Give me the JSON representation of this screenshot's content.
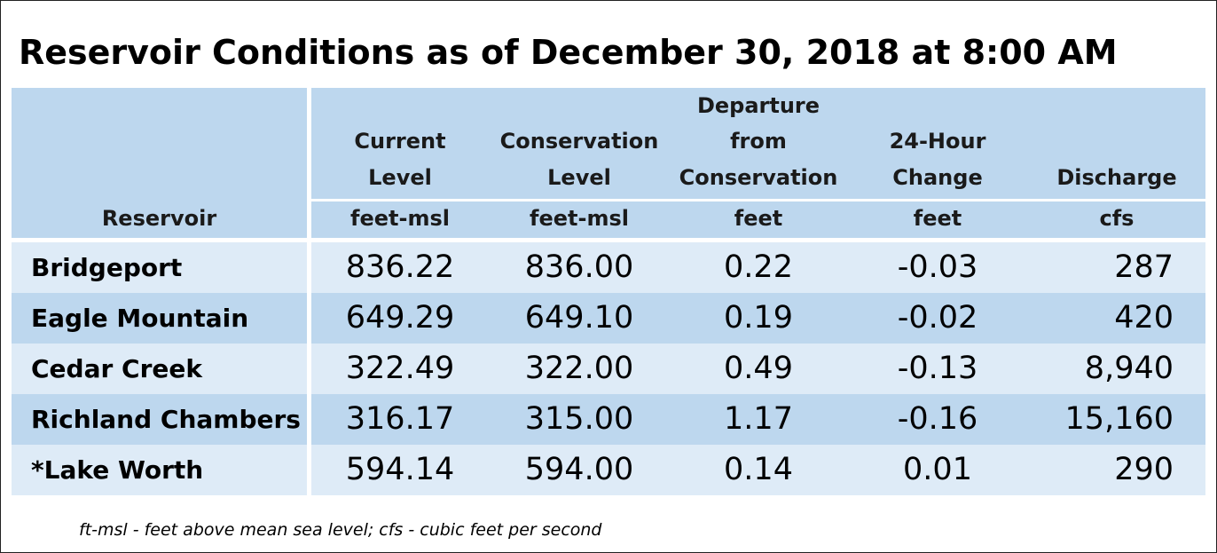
{
  "title": "Reservoir Conditions as of December 30, 2018 at 8:00 AM",
  "headers": {
    "reservoir": "Reservoir",
    "current_level_1": "Current",
    "current_level_2": "Level",
    "current_level_unit": "feet-msl",
    "conservation_level_1": "Conservation",
    "conservation_level_2": "Level",
    "conservation_level_unit": "feet-msl",
    "departure_1": "Departure",
    "departure_2": "from",
    "departure_3": "Conservation",
    "departure_unit": "feet",
    "change_1": "24-Hour",
    "change_2": "Change",
    "change_unit": "feet",
    "discharge_1": "Discharge",
    "discharge_unit": "cfs"
  },
  "rows": [
    {
      "reservoir": "Bridgeport",
      "current": "836.22",
      "conservation": "836.00",
      "departure": "0.22",
      "change": "-0.03",
      "discharge": "287"
    },
    {
      "reservoir": "Eagle Mountain",
      "current": "649.29",
      "conservation": "649.10",
      "departure": "0.19",
      "change": "-0.02",
      "discharge": "420"
    },
    {
      "reservoir": "Cedar Creek",
      "current": "322.49",
      "conservation": "322.00",
      "departure": "0.49",
      "change": "-0.13",
      "discharge": "8,940"
    },
    {
      "reservoir": "Richland Chambers",
      "current": "316.17",
      "conservation": "315.00",
      "departure": "1.17",
      "change": "-0.16",
      "discharge": "15,160"
    },
    {
      "reservoir": "*Lake Worth",
      "current": "594.14",
      "conservation": "594.00",
      "departure": "0.14",
      "change": "0.01",
      "discharge": "290"
    }
  ],
  "footnote": "ft-msl - feet above mean sea level; cfs - cubic feet per second",
  "colors": {
    "header_bg": "#bdd7ee",
    "row_light": "#deebf7",
    "row_dark": "#bdd7ee"
  }
}
